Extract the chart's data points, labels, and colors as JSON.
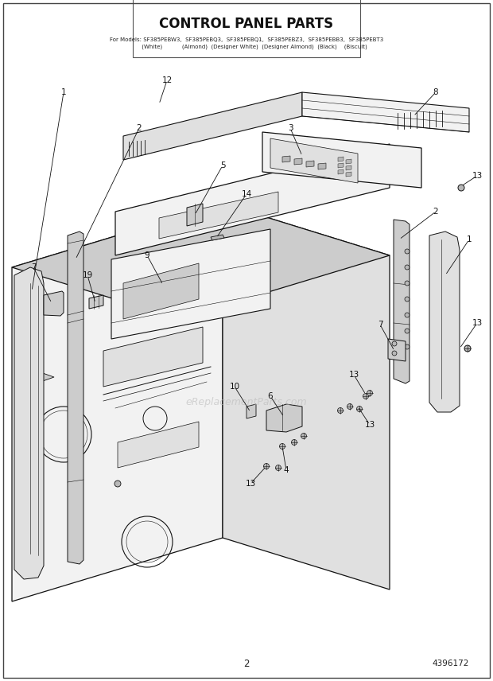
{
  "title": "CONTROL PANEL PARTS",
  "subtitle_line1": "For Models: SF385PEBW3,  SF385PEBQ3,  SF385PEBQ1,  SF385PEBZ3,  SF385PEBB3,  SF385PEBT3",
  "subtitle_line2": "         (White)           (Almond)  (Designer White)  (Designer Almond)  (Black)    (Biscuit)",
  "page_number": "2",
  "part_number": "4396172",
  "watermark": "eReplacementParts.com",
  "bg": "#ffffff",
  "lc": "#111111",
  "gray1": "#f2f2f2",
  "gray2": "#e0e0e0",
  "gray3": "#cccccc",
  "gray4": "#b8b8b8"
}
